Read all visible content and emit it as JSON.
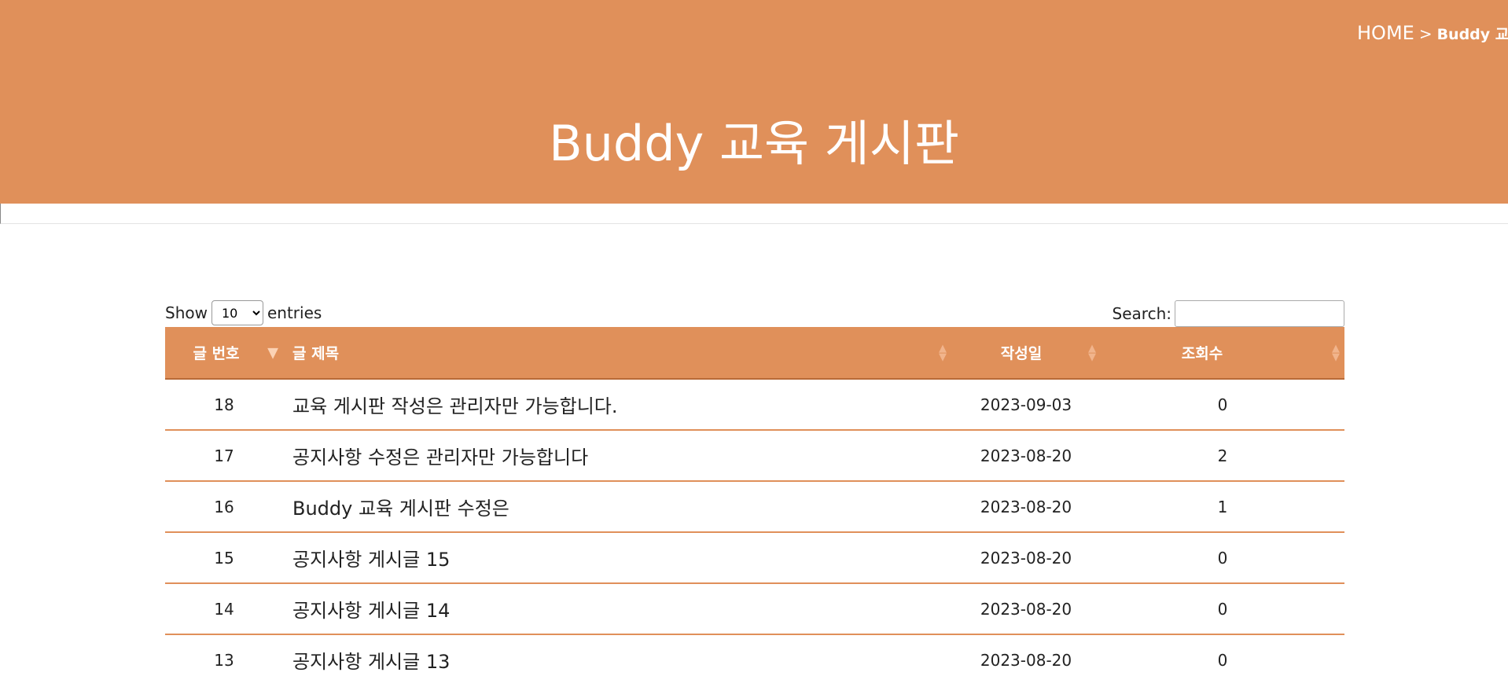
{
  "header": {
    "breadcrumb_home": "HOME",
    "breadcrumb_sep": ">",
    "breadcrumb_current": "Buddy 교육 게시판",
    "title": "Buddy 교육 게시판"
  },
  "controls": {
    "show_label": "Show",
    "entries_value": "10",
    "entries_label": "entries",
    "search_label": "Search:",
    "search_value": ""
  },
  "table": {
    "columns": [
      "글 번호",
      "글 제목",
      "작성일",
      "조회수"
    ],
    "rows": [
      {
        "no": "18",
        "title": "교육 게시판 작성은 관리자만 가능합니다.",
        "date": "2023-09-03",
        "views": "0"
      },
      {
        "no": "17",
        "title": "공지사항 수정은 관리자만 가능합니다",
        "date": "2023-08-20",
        "views": "2"
      },
      {
        "no": "16",
        "title": "Buddy 교육 게시판 수정은",
        "date": "2023-08-20",
        "views": "1"
      },
      {
        "no": "15",
        "title": "공지사항 게시글 15",
        "date": "2023-08-20",
        "views": "0"
      },
      {
        "no": "14",
        "title": "공지사항 게시글 14",
        "date": "2023-08-20",
        "views": "0"
      },
      {
        "no": "13",
        "title": "공지사항 게시글 13",
        "date": "2023-08-20",
        "views": "0"
      }
    ]
  },
  "colors": {
    "brand": "#E0905A",
    "text": "#222222"
  },
  "icons": {
    "sort": "sort-both-icon",
    "sort_active": "sort-desc-icon"
  }
}
